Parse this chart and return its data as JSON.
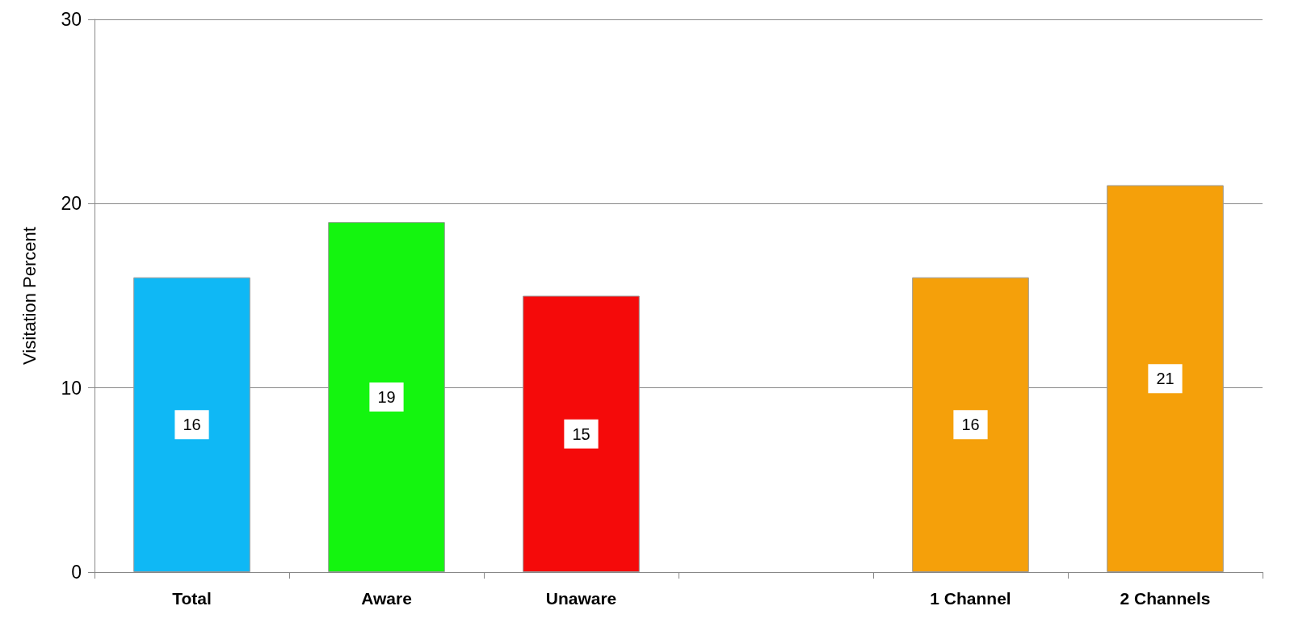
{
  "chart_data": {
    "type": "bar",
    "ylabel": "Visitation Percent",
    "categories": [
      "Total",
      "Aware",
      "Unaware",
      null,
      "1 Channel",
      "2 Channels"
    ],
    "values": [
      16,
      19,
      15,
      null,
      16,
      21
    ],
    "colors": [
      "#0fb8f5",
      "#14f50f",
      "#f50a0a",
      "#f5a00a",
      "#f5a00a",
      "#f5a00a"
    ],
    "ylim": [
      0,
      30
    ],
    "yticks": [
      0,
      10,
      20,
      30
    ],
    "grid": "y",
    "data_labels": true
  }
}
